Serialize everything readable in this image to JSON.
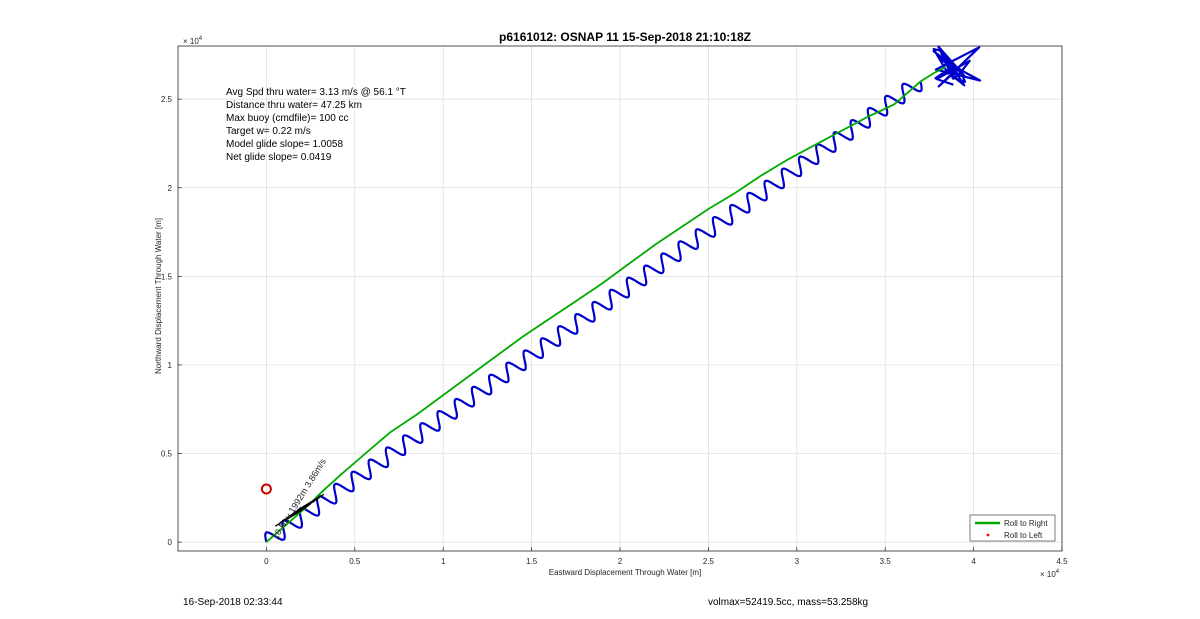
{
  "chart_data": {
    "type": "line",
    "title": "p6161012: OSNAP 11 15-Sep-2018 21:10:18Z",
    "xlabel": "Eastward Displacement Through Water [m]",
    "ylabel": "Northward Displacement Through Water [m]",
    "x_exponent": "× 10",
    "x_exponent_power": "4",
    "y_exponent": "× 10",
    "y_exponent_power": "4",
    "xlim": [
      -5000,
      45000
    ],
    "ylim": [
      -500,
      28000
    ],
    "xticks": [
      0,
      5000,
      10000,
      15000,
      20000,
      25000,
      30000,
      35000,
      40000,
      45000
    ],
    "xtick_labels": [
      "0",
      "0.5",
      "1",
      "1.5",
      "2",
      "2.5",
      "3",
      "3.5",
      "4",
      "4.5"
    ],
    "yticks": [
      0,
      5000,
      10000,
      15000,
      20000,
      25000
    ],
    "ytick_labels": [
      "0",
      "0.5",
      "1",
      "1.5",
      "2",
      "2.5"
    ],
    "grid": true,
    "legend_position": "bottom-right",
    "series": [
      {
        "name": "Roll to Right",
        "color": "#00aa00",
        "style": "solid",
        "x": [
          0,
          800,
          1600,
          2400,
          3200,
          4200,
          5600,
          7000,
          8500,
          10000,
          11500,
          13000,
          14500,
          16000,
          17500,
          19000,
          20500,
          22000,
          23500,
          25000,
          26500,
          28000,
          29500,
          31000,
          32500,
          34000,
          35500,
          36200,
          37000,
          37800,
          38400
        ],
        "y": [
          0,
          700,
          1400,
          2100,
          2900,
          3800,
          5000,
          6200,
          7200,
          8300,
          9400,
          10500,
          11600,
          12600,
          13600,
          14600,
          15700,
          16800,
          17800,
          18800,
          19700,
          20700,
          21600,
          22400,
          23200,
          24000,
          24700,
          25300,
          26000,
          26500,
          26800
        ]
      },
      {
        "name": "Roll to Left",
        "color": "#ff0000",
        "style": "dot"
      }
    ],
    "path": {
      "color": "#0000cc",
      "start": [
        0,
        0
      ],
      "end": [
        37000,
        26000
      ],
      "wiggle_count": 38,
      "wiggle_amp": 450
    },
    "markers": [
      {
        "name": "start-circle",
        "x": 0,
        "y": 3000,
        "color": "#cc0000"
      }
    ],
    "annotation_text": "10 Nov 1992m 3.86m/s",
    "info_lines": [
      "Avg Spd thru water=  3.13 m/s @  56.1 °T",
      "Distance thru water= 47.25 km",
      "Max buoy (cmdfile)= 100 cc",
      "Target w= 0.22 m/s",
      "Model glide slope= 1.0058",
      "Net glide slope= 0.0419"
    ]
  },
  "footer": {
    "left": "16-Sep-2018 02:33:44",
    "right": "volmax=52419.5cc, mass=53.258kg"
  }
}
